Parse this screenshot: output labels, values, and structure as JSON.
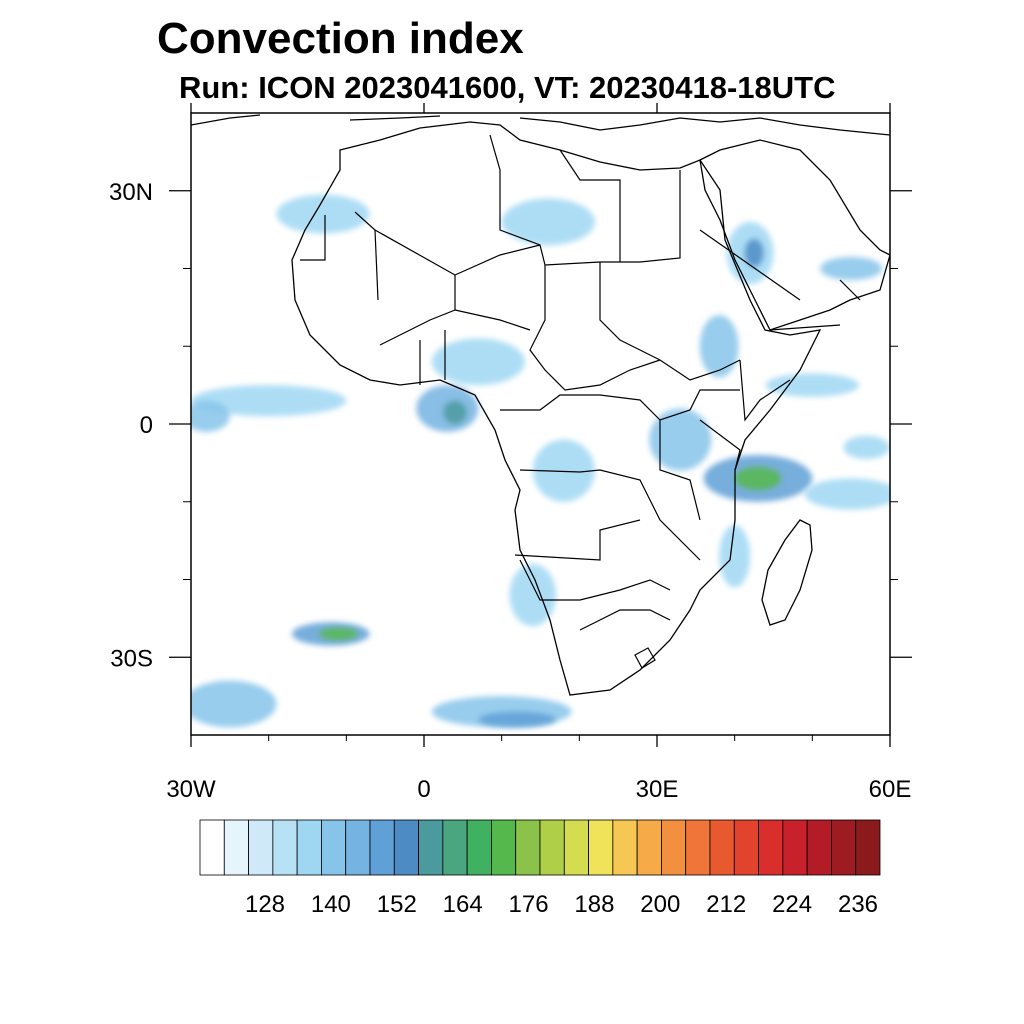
{
  "title": "Convection index",
  "subtitle": "Run: ICON 2023041600,  VT: 20230418-18UTC",
  "map": {
    "projection": "cylindrical-equidistant",
    "lon_range": [
      -30,
      60
    ],
    "lat_range": [
      -40,
      40
    ],
    "lon_ticks": [
      {
        "value": -30,
        "label": "30W"
      },
      {
        "value": 0,
        "label": "0"
      },
      {
        "value": 30,
        "label": "30E"
      },
      {
        "value": 60,
        "label": "60E"
      }
    ],
    "lat_ticks": [
      {
        "value": 30,
        "label": "30N"
      },
      {
        "value": 0,
        "label": "0"
      },
      {
        "value": -30,
        "label": "30S"
      }
    ],
    "boundary_color": "#000000",
    "convection_areas": [
      {
        "lon": -13,
        "lat": 27,
        "rx": 6,
        "ry": 2.5,
        "level": 2,
        "region": "north-west-sahara"
      },
      {
        "lon": 16,
        "lat": 26,
        "rx": 6,
        "ry": 3,
        "level": 2,
        "region": "libya"
      },
      {
        "lon": 42,
        "lat": 22,
        "rx": 3,
        "ry": 4,
        "level": 2,
        "region": "saudi-arabia"
      },
      {
        "lon": 42.5,
        "lat": 22,
        "rx": 1.2,
        "ry": 1.8,
        "level": 6,
        "region": "saudi-arabia-core"
      },
      {
        "lon": 55,
        "lat": 20,
        "rx": 4,
        "ry": 1.5,
        "level": 3,
        "region": "oman"
      },
      {
        "lon": 38,
        "lat": 10,
        "rx": 2.5,
        "ry": 4,
        "level": 3,
        "region": "ethiopia"
      },
      {
        "lon": 7,
        "lat": 8,
        "rx": 6,
        "ry": 3,
        "level": 2,
        "region": "nigeria"
      },
      {
        "lon": 3,
        "lat": 2,
        "rx": 4,
        "ry": 3,
        "level": 4,
        "region": "gulf-of-guinea"
      },
      {
        "lon": 4,
        "lat": 1.5,
        "rx": 1.5,
        "ry": 1.5,
        "level": 7,
        "region": "gulf-of-guinea-core"
      },
      {
        "lon": -20,
        "lat": 3,
        "rx": 10,
        "ry": 2,
        "level": 2,
        "region": "atlantic-itcz"
      },
      {
        "lon": -28,
        "lat": 1,
        "rx": 3,
        "ry": 2,
        "level": 3,
        "region": "atlantic-itcz-west"
      },
      {
        "lon": 18,
        "lat": -6,
        "rx": 4,
        "ry": 4,
        "level": 2,
        "region": "angola"
      },
      {
        "lon": 33,
        "lat": -2,
        "rx": 4,
        "ry": 4,
        "level": 3,
        "region": "lake-victoria"
      },
      {
        "lon": 43,
        "lat": -7,
        "rx": 7,
        "ry": 3,
        "level": 5,
        "region": "tanzania-coast"
      },
      {
        "lon": 43,
        "lat": -7,
        "rx": 3,
        "ry": 1.5,
        "level": 10,
        "region": "tanzania-coast-core"
      },
      {
        "lon": 55,
        "lat": -9,
        "rx": 6,
        "ry": 2,
        "level": 2,
        "region": "indian-ocean"
      },
      {
        "lon": 50,
        "lat": 5,
        "rx": 6,
        "ry": 1.5,
        "level": 2,
        "region": "somali-sea"
      },
      {
        "lon": 14,
        "lat": -22,
        "rx": 3,
        "ry": 4,
        "level": 2,
        "region": "namibia"
      },
      {
        "lon": 40,
        "lat": -17,
        "rx": 2,
        "ry": 4,
        "level": 2,
        "region": "mozambique-channel"
      },
      {
        "lon": -12,
        "lat": -27,
        "rx": 5,
        "ry": 1.5,
        "level": 5,
        "region": "south-atlantic"
      },
      {
        "lon": -11,
        "lat": -27,
        "rx": 2.5,
        "ry": 0.8,
        "level": 10,
        "region": "south-atlantic-core"
      },
      {
        "lon": 10,
        "lat": -37,
        "rx": 9,
        "ry": 2,
        "level": 3,
        "region": "cape-basin"
      },
      {
        "lon": 12,
        "lat": -38,
        "rx": 5,
        "ry": 1,
        "level": 5,
        "region": "cape-basin-core"
      },
      {
        "lon": -25,
        "lat": -36,
        "rx": 6,
        "ry": 3,
        "level": 3,
        "region": "south-west-corner"
      },
      {
        "lon": 57,
        "lat": -3,
        "rx": 3,
        "ry": 1.5,
        "level": 2,
        "region": "seychelles"
      }
    ]
  },
  "colorbar": {
    "tick_labels": [
      "128",
      "140",
      "152",
      "164",
      "176",
      "188",
      "200",
      "212",
      "224",
      "236"
    ],
    "colors": [
      "#ffffff",
      "#e6f4fc",
      "#cfe9f8",
      "#b7e1f5",
      "#9fd7f3",
      "#86c4ea",
      "#74b3e2",
      "#5fa0d6",
      "#4d8bc4",
      "#4b9a9e",
      "#4aa67e",
      "#3fb160",
      "#55b84c",
      "#8bc34a",
      "#afcf49",
      "#d4dc50",
      "#f0e35a",
      "#f6c752",
      "#f7ab48",
      "#f39040",
      "#ef7538",
      "#e95930",
      "#e2432d",
      "#d92e2c",
      "#c9212c",
      "#b31b27",
      "#9e1b22",
      "#8a1a1c"
    ]
  }
}
